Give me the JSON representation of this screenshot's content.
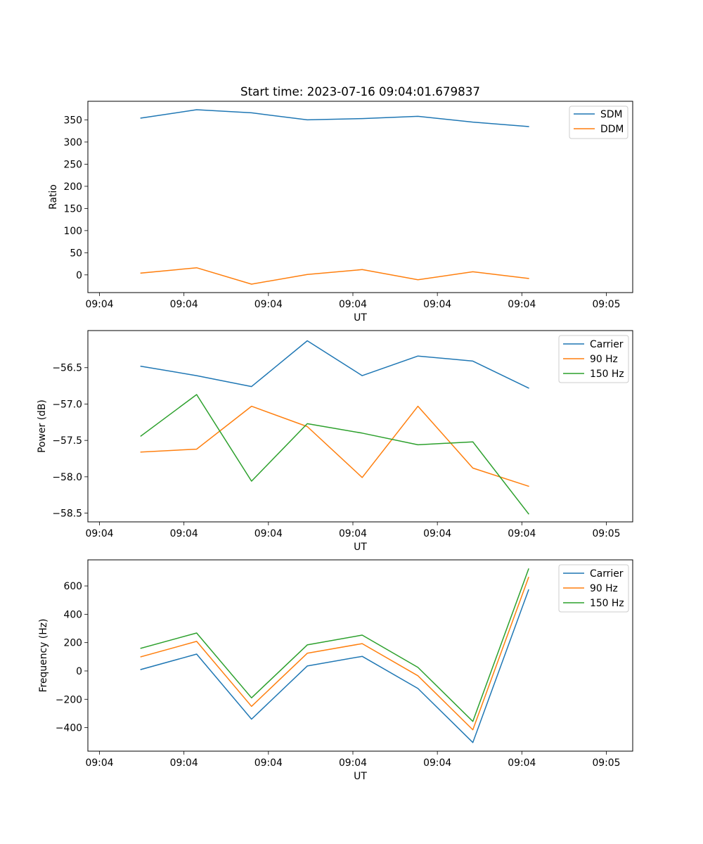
{
  "chart_data": [
    {
      "type": "line",
      "title": "Start time: 2023-07-16 09:04:01.679837",
      "xlabel": "UT",
      "ylabel": "Ratio",
      "xlim": [
        0,
        6.2
      ],
      "ylim": [
        -40,
        392
      ],
      "xticks": [
        0,
        1,
        2,
        3,
        4,
        5,
        6
      ],
      "xtick_labels": [
        "09:04",
        "09:04",
        "09:04",
        "09:04",
        "09:04",
        "09:04",
        "09:05"
      ],
      "yticks": [
        0,
        50,
        100,
        150,
        200,
        250,
        300,
        350
      ],
      "ytick_labels": [
        "0",
        "50",
        "100",
        "150",
        "200",
        "250",
        "300",
        "350"
      ],
      "x": [
        0.49,
        1.15,
        1.8,
        2.46,
        3.11,
        3.77,
        4.42,
        5.08
      ],
      "series": [
        {
          "name": "SDM",
          "color": "#1f77b4",
          "values": [
            354,
            373,
            366,
            350,
            353,
            358,
            345,
            335
          ]
        },
        {
          "name": "DDM",
          "color": "#ff7f0e",
          "values": [
            4,
            16,
            -21,
            1,
            12,
            -11,
            7,
            -8
          ]
        }
      ],
      "legend_position": "top-right"
    },
    {
      "type": "line",
      "title": "",
      "xlabel": "UT",
      "ylabel": "Power (dB)",
      "xlim": [
        0,
        6.2
      ],
      "ylim": [
        -58.62,
        -55.99
      ],
      "xticks": [
        0,
        1,
        2,
        3,
        4,
        5,
        6
      ],
      "xtick_labels": [
        "09:04",
        "09:04",
        "09:04",
        "09:04",
        "09:04",
        "09:04",
        "09:05"
      ],
      "yticks": [
        -58.5,
        -58.0,
        -57.5,
        -57.0,
        -56.5
      ],
      "ytick_labels": [
        "−58.5",
        "−58.0",
        "−57.5",
        "−57.0",
        "−56.5"
      ],
      "x": [
        0.49,
        1.15,
        1.8,
        2.46,
        3.11,
        3.77,
        4.42,
        5.08
      ],
      "series": [
        {
          "name": "Carrier",
          "color": "#1f77b4",
          "values": [
            -56.48,
            -56.61,
            -56.76,
            -56.13,
            -56.61,
            -56.34,
            -56.41,
            -56.78
          ]
        },
        {
          "name": "90 Hz",
          "color": "#ff7f0e",
          "values": [
            -57.66,
            -57.62,
            -57.03,
            -57.31,
            -58.01,
            -57.03,
            -57.88,
            -58.13
          ]
        },
        {
          "name": "150 Hz",
          "color": "#2ca02c",
          "values": [
            -57.44,
            -56.87,
            -58.06,
            -57.27,
            -57.4,
            -57.56,
            -57.52,
            -58.51
          ]
        }
      ],
      "legend_position": "top-right"
    },
    {
      "type": "line",
      "title": "",
      "xlabel": "UT",
      "ylabel": "Frequency (Hz)",
      "xlim": [
        0,
        6.2
      ],
      "ylim": [
        -566,
        784
      ],
      "xticks": [
        0,
        1,
        2,
        3,
        4,
        5,
        6
      ],
      "xtick_labels": [
        "09:04",
        "09:04",
        "09:04",
        "09:04",
        "09:04",
        "09:04",
        "09:05"
      ],
      "yticks": [
        -400,
        -200,
        0,
        200,
        400,
        600
      ],
      "ytick_labels": [
        "−400",
        "−200",
        "0",
        "200",
        "400",
        "600"
      ],
      "x": [
        0.49,
        1.15,
        1.8,
        2.46,
        3.11,
        3.77,
        4.42,
        5.08
      ],
      "series": [
        {
          "name": "Carrier",
          "color": "#1f77b4",
          "values": [
            10,
            119,
            -340,
            35,
            103,
            -124,
            -505,
            572
          ]
        },
        {
          "name": "90 Hz",
          "color": "#ff7f0e",
          "values": [
            100,
            209,
            -250,
            125,
            193,
            -34,
            -415,
            660
          ]
        },
        {
          "name": "150 Hz",
          "color": "#2ca02c",
          "values": [
            160,
            268,
            -190,
            184,
            253,
            25,
            -356,
            720
          ]
        }
      ],
      "legend_position": "top-right"
    }
  ]
}
